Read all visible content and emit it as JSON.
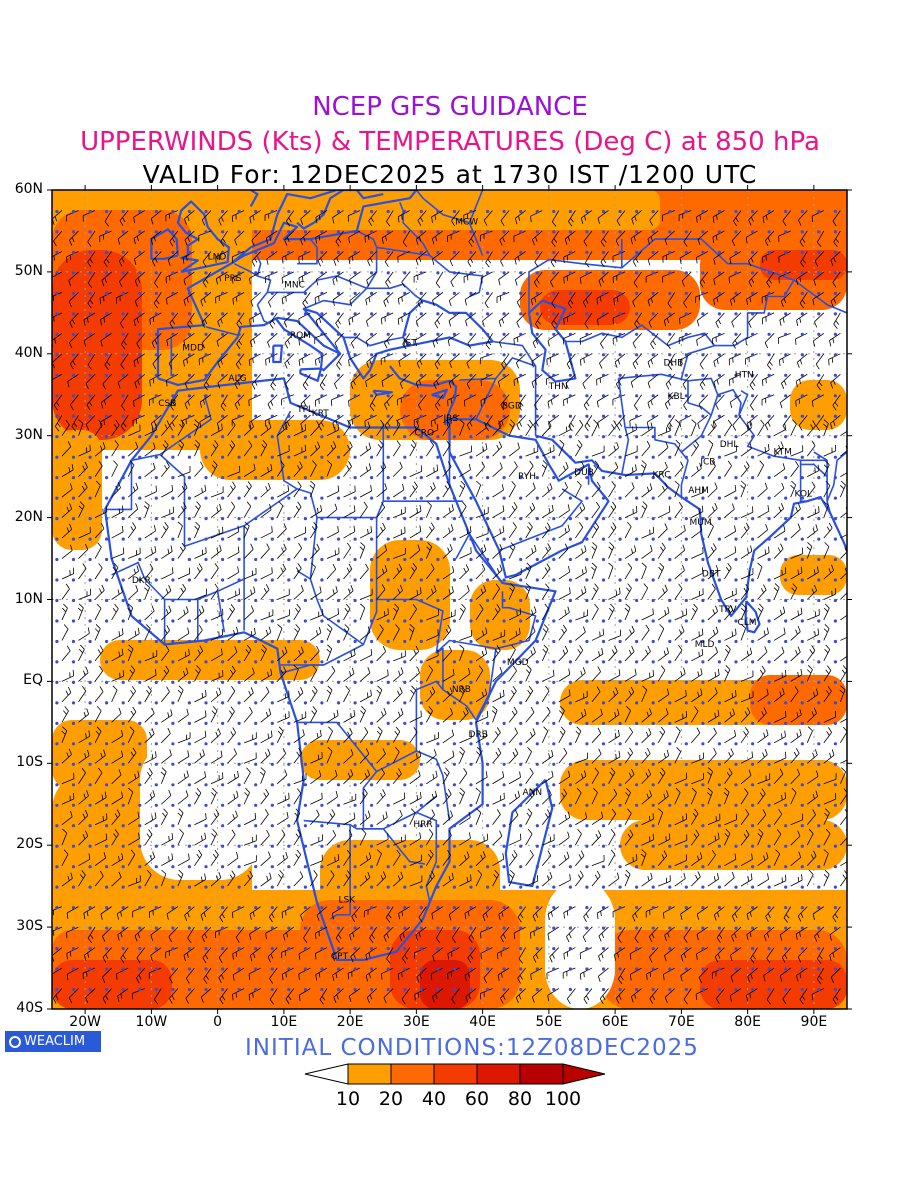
{
  "titles": {
    "line1": "NCEP GFS GUIDANCE",
    "line2": "UPPERWINDS (Kts) & TEMPERATURES (Deg C) at 850 hPa",
    "line3": "VALID For: 12DEC2025 at 1730 IST /1200 UTC"
  },
  "colors": {
    "line1": "#9a12d8",
    "line2": "#e8148c",
    "line3": "#000000",
    "country_borders": "#2a50e0",
    "initial_conditions": "#4a6ce0",
    "shade_10_20": "#ff9e00",
    "shade_20_40": "#ff6a00",
    "shade_40_60": "#f43c00",
    "shade_60_80": "#dc1800",
    "shade_80_100": "#b80000",
    "temperature_labels": "#3b4bd6"
  },
  "map": {
    "lat_labels": [
      "60N",
      "50N",
      "40N",
      "30N",
      "20N",
      "10N",
      "EQ",
      "10S",
      "20S",
      "30S",
      "40S"
    ],
    "lon_labels": [
      "20W",
      "10W",
      "0",
      "10E",
      "20E",
      "30E",
      "40E",
      "50E",
      "60E",
      "70E",
      "80E",
      "90E"
    ],
    "stations": [
      {
        "code": "MCW"
      },
      {
        "code": "LND"
      },
      {
        "code": "PRS"
      },
      {
        "code": "MNC"
      },
      {
        "code": "ROM"
      },
      {
        "code": "MDD"
      },
      {
        "code": "IST"
      },
      {
        "code": "ALG"
      },
      {
        "code": "DHB"
      },
      {
        "code": "HTN"
      },
      {
        "code": "THN"
      },
      {
        "code": "KBL"
      },
      {
        "code": "CSB"
      },
      {
        "code": "TPL"
      },
      {
        "code": "KRT"
      },
      {
        "code": "BGD"
      },
      {
        "code": "JRS"
      },
      {
        "code": "CRO"
      },
      {
        "code": "DHL"
      },
      {
        "code": "JCB"
      },
      {
        "code": "KTM"
      },
      {
        "code": "DUB"
      },
      {
        "code": "RYH"
      },
      {
        "code": "KRC"
      },
      {
        "code": "AHM"
      },
      {
        "code": "KOL"
      },
      {
        "code": "MUM"
      },
      {
        "code": "DKR"
      },
      {
        "code": "DBT"
      },
      {
        "code": "TRV"
      },
      {
        "code": "CLM"
      },
      {
        "code": "MLD"
      },
      {
        "code": "MGD"
      },
      {
        "code": "NRB"
      },
      {
        "code": "DRS"
      },
      {
        "code": "ANN"
      },
      {
        "code": "HRR"
      },
      {
        "code": "LSK"
      },
      {
        "code": "CPT"
      }
    ]
  },
  "footer": {
    "logo_text": "WEACLIM",
    "initial_conditions": "INITIAL CONDITIONS:12Z08DEC2025"
  },
  "legend": {
    "labels": [
      "10",
      "20",
      "40",
      "60",
      "80",
      "100"
    ]
  }
}
